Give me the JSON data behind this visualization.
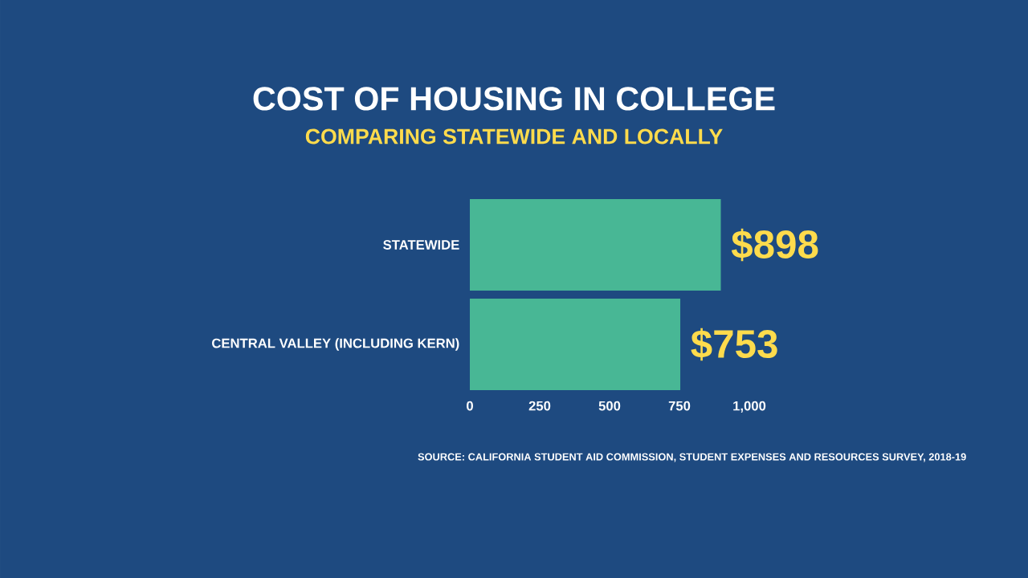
{
  "chart_data": {
    "type": "bar",
    "orientation": "horizontal",
    "title": "COST OF HOUSING IN COLLEGE",
    "subtitle": "COMPARING STATEWIDE AND LOCALLY",
    "categories": [
      "STATEWIDE",
      "CENTRAL VALLEY (INCLUDING KERN)"
    ],
    "values": [
      898,
      753
    ],
    "value_labels": [
      "$898",
      "$753"
    ],
    "color": "#48b795",
    "xlim": [
      0,
      1000
    ],
    "xticks": [
      0,
      250,
      500,
      750,
      {
        "value": 1000,
        "label": "1,000"
      }
    ],
    "grid": false,
    "annotations": [
      "SOURCE: CALIFORNIA STUDENT AID COMMISSION, STUDENT EXPENSES AND RESOURCES SURVEY, 2018-19"
    ]
  }
}
